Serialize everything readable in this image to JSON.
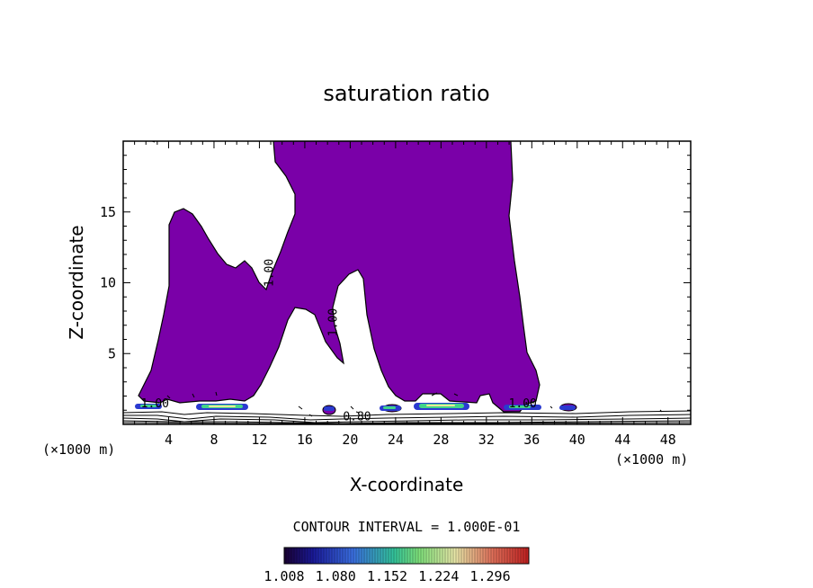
{
  "chart_data": {
    "type": "contour",
    "title": "saturation ratio",
    "xlabel": "X-coordinate",
    "ylabel": "Z-coordinate",
    "x_unit": "(×1000 m)",
    "x_unit_right": "(×1000 m)",
    "xlim": [
      0,
      50
    ],
    "ylim": [
      0,
      20
    ],
    "xticks": [
      4,
      8,
      12,
      16,
      20,
      24,
      28,
      32,
      36,
      40,
      44,
      48
    ],
    "yticks": [
      5,
      10,
      15
    ],
    "contour_interval_text": "CONTOUR INTERVAL = 1.000E-01",
    "contour_labels": [
      {
        "text": "1.00",
        "x": 13.2,
        "z": 10.7,
        "angle": -90
      },
      {
        "text": "1.00",
        "x": 18.8,
        "z": 7.2,
        "angle": -90
      },
      {
        "text": "0.80",
        "x": 20.6,
        "z": 0.3,
        "angle": 0
      },
      {
        "text": "1.00",
        "x": 2.8,
        "z": 1.2,
        "angle": 0
      },
      {
        "text": "1.00",
        "x": 35.2,
        "z": 1.2,
        "angle": 0
      }
    ],
    "colorbar": {
      "ticks": [
        "1.008",
        "1.080",
        "1.152",
        "1.224",
        "1.296"
      ],
      "range": [
        1.008,
        1.35
      ]
    },
    "fill_color": "#7a00a8",
    "outline_color": "#000000"
  }
}
